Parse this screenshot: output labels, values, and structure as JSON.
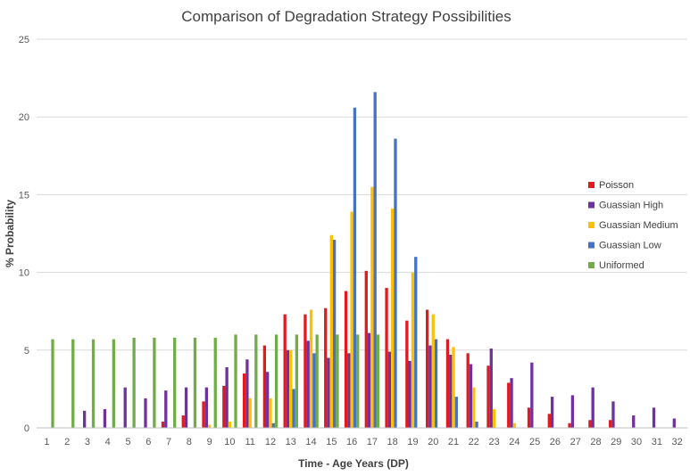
{
  "chart_data": {
    "type": "bar",
    "title": "Comparison of Degradation Strategy Possibilities",
    "xlabel": "Time - Age Years (DP)",
    "ylabel": "% Probability",
    "ylim": [
      0,
      25
    ],
    "yticks": [
      0,
      5,
      10,
      15,
      20,
      25
    ],
    "grid": true,
    "legend_position": "right",
    "categories": [
      "1",
      "2",
      "3",
      "4",
      "5",
      "6",
      "7",
      "8",
      "9",
      "10",
      "11",
      "12",
      "13",
      "14",
      "15",
      "16",
      "17",
      "18",
      "19",
      "20",
      "21",
      "22",
      "23",
      "24",
      "25",
      "26",
      "27",
      "28",
      "29",
      "30",
      "31",
      "32"
    ],
    "series": [
      {
        "name": "Poisson",
        "color": "#e31a1c",
        "values": [
          0,
          0,
          0,
          0,
          0,
          0,
          0.4,
          0.8,
          1.7,
          2.7,
          3.5,
          5.3,
          7.3,
          7.3,
          7.7,
          8.8,
          10.1,
          9.0,
          6.9,
          7.6,
          5.7,
          4.8,
          4.0,
          2.9,
          1.3,
          0.9,
          0.3,
          0.5,
          0.5,
          0,
          0,
          0
        ]
      },
      {
        "name": "Guassian High",
        "color": "#7030a0",
        "values": [
          0,
          0,
          1.1,
          1.2,
          2.6,
          1.9,
          2.4,
          2.6,
          2.6,
          3.9,
          4.4,
          3.6,
          5.0,
          5.6,
          4.5,
          4.8,
          6.1,
          4.9,
          4.3,
          5.3,
          4.7,
          4.1,
          5.1,
          3.2,
          4.2,
          2.0,
          2.1,
          2.6,
          1.7,
          0.8,
          1.3,
          0.6
        ]
      },
      {
        "name": "Guassian Medium",
        "color": "#ffc000",
        "values": [
          0,
          0,
          0,
          0,
          0,
          0,
          0,
          0,
          0.2,
          0.4,
          1.9,
          1.9,
          5.0,
          7.6,
          12.4,
          13.9,
          15.5,
          14.1,
          10.0,
          7.3,
          5.2,
          2.6,
          1.2,
          0.3,
          0,
          0,
          0,
          0,
          0,
          0,
          0,
          0
        ]
      },
      {
        "name": "Guassian Low",
        "color": "#4472c4",
        "values": [
          0,
          0,
          0,
          0,
          0,
          0,
          0,
          0,
          0,
          0,
          0,
          0.3,
          2.5,
          4.8,
          12.1,
          20.6,
          21.6,
          18.6,
          11.0,
          5.7,
          2.0,
          0.4,
          0,
          0,
          0,
          0,
          0,
          0,
          0,
          0,
          0,
          0
        ]
      },
      {
        "name": "Uniformed",
        "color": "#70ad47",
        "values": [
          5.7,
          5.7,
          5.7,
          5.7,
          5.8,
          5.8,
          5.8,
          5.8,
          5.8,
          6.0,
          6.0,
          6.0,
          6.0,
          6.0,
          6.0,
          6.0,
          6.0,
          0,
          0,
          0,
          0,
          0,
          0,
          0,
          0,
          0,
          0,
          0,
          0,
          0,
          0,
          0
        ]
      }
    ]
  }
}
